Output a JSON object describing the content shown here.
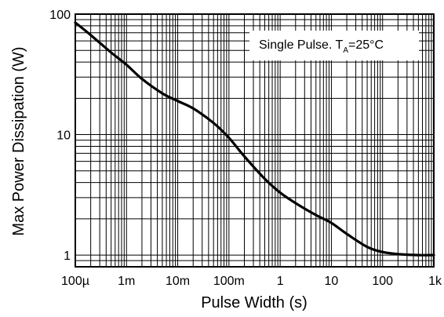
{
  "chart_data": {
    "type": "line",
    "title": "",
    "xlabel": "Pulse Width (s)",
    "ylabel": "Max Power Dissipation (W)",
    "x_scale": "log",
    "y_scale": "log",
    "xlim": [
      0.0001,
      1000
    ],
    "ylim": [
      0.8,
      100
    ],
    "x_ticks": [
      0.0001,
      0.001,
      0.01,
      0.1,
      1,
      10,
      100,
      1000
    ],
    "x_tick_labels": [
      "100µ",
      "1m",
      "10m",
      "100m",
      "1",
      "10",
      "100",
      "1k"
    ],
    "y_ticks": [
      1,
      10,
      100
    ],
    "y_tick_labels": [
      "1",
      "10",
      "100"
    ],
    "grid": true,
    "line_color": "#000000",
    "annotation": {
      "text": "Single Pulse. T",
      "subscript": "A",
      "rest": "=25°C",
      "placement": "top-right"
    },
    "series": [
      {
        "x": [
          0.0001,
          0.0002,
          0.0005,
          0.001,
          0.002,
          0.005,
          0.01,
          0.02,
          0.05,
          0.1,
          0.2,
          0.5,
          1,
          2,
          5,
          10,
          20,
          50,
          100,
          200,
          500,
          1000
        ],
        "y": [
          85,
          67,
          48,
          38,
          29,
          22,
          19,
          16.5,
          12.5,
          9.4,
          6.6,
          4.3,
          3.3,
          2.7,
          2.15,
          1.85,
          1.5,
          1.17,
          1.06,
          1.02,
          1.0,
          1.0
        ]
      }
    ]
  }
}
